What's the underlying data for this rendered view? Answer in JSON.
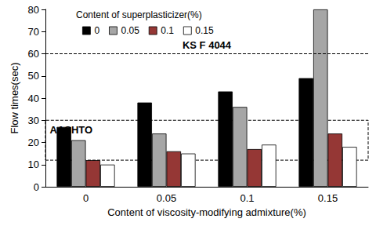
{
  "chart_data": {
    "type": "bar",
    "x_label": "Content of viscosity-modifying admixture(%)",
    "y_label": "Flow times(sec)",
    "legend_title": "Content of superplasticizer(%)",
    "legend": "upper left",
    "categories": [
      "0",
      "0.05",
      "0.1",
      "0.15"
    ],
    "series": [
      {
        "name": "0",
        "color": "#000000",
        "values": [
          27,
          38,
          43,
          49
        ]
      },
      {
        "name": "0.05",
        "color": "#a6a6a6",
        "values": [
          21,
          24,
          36,
          80
        ]
      },
      {
        "name": "0.1",
        "color": "#953735",
        "values": [
          12,
          16,
          17,
          24
        ]
      },
      {
        "name": "0.15",
        "color": "#ffffff",
        "values": [
          10,
          15,
          19,
          18
        ]
      }
    ],
    "ylim": [
      0,
      80
    ],
    "yticks": [
      0,
      10,
      20,
      30,
      40,
      50,
      60,
      70,
      80
    ],
    "grid": false,
    "reference_lines": [
      {
        "label": "KS F 4044",
        "value": 60
      }
    ],
    "reference_ranges": [
      {
        "label": "AASHTO",
        "range": [
          12,
          30
        ]
      }
    ]
  }
}
